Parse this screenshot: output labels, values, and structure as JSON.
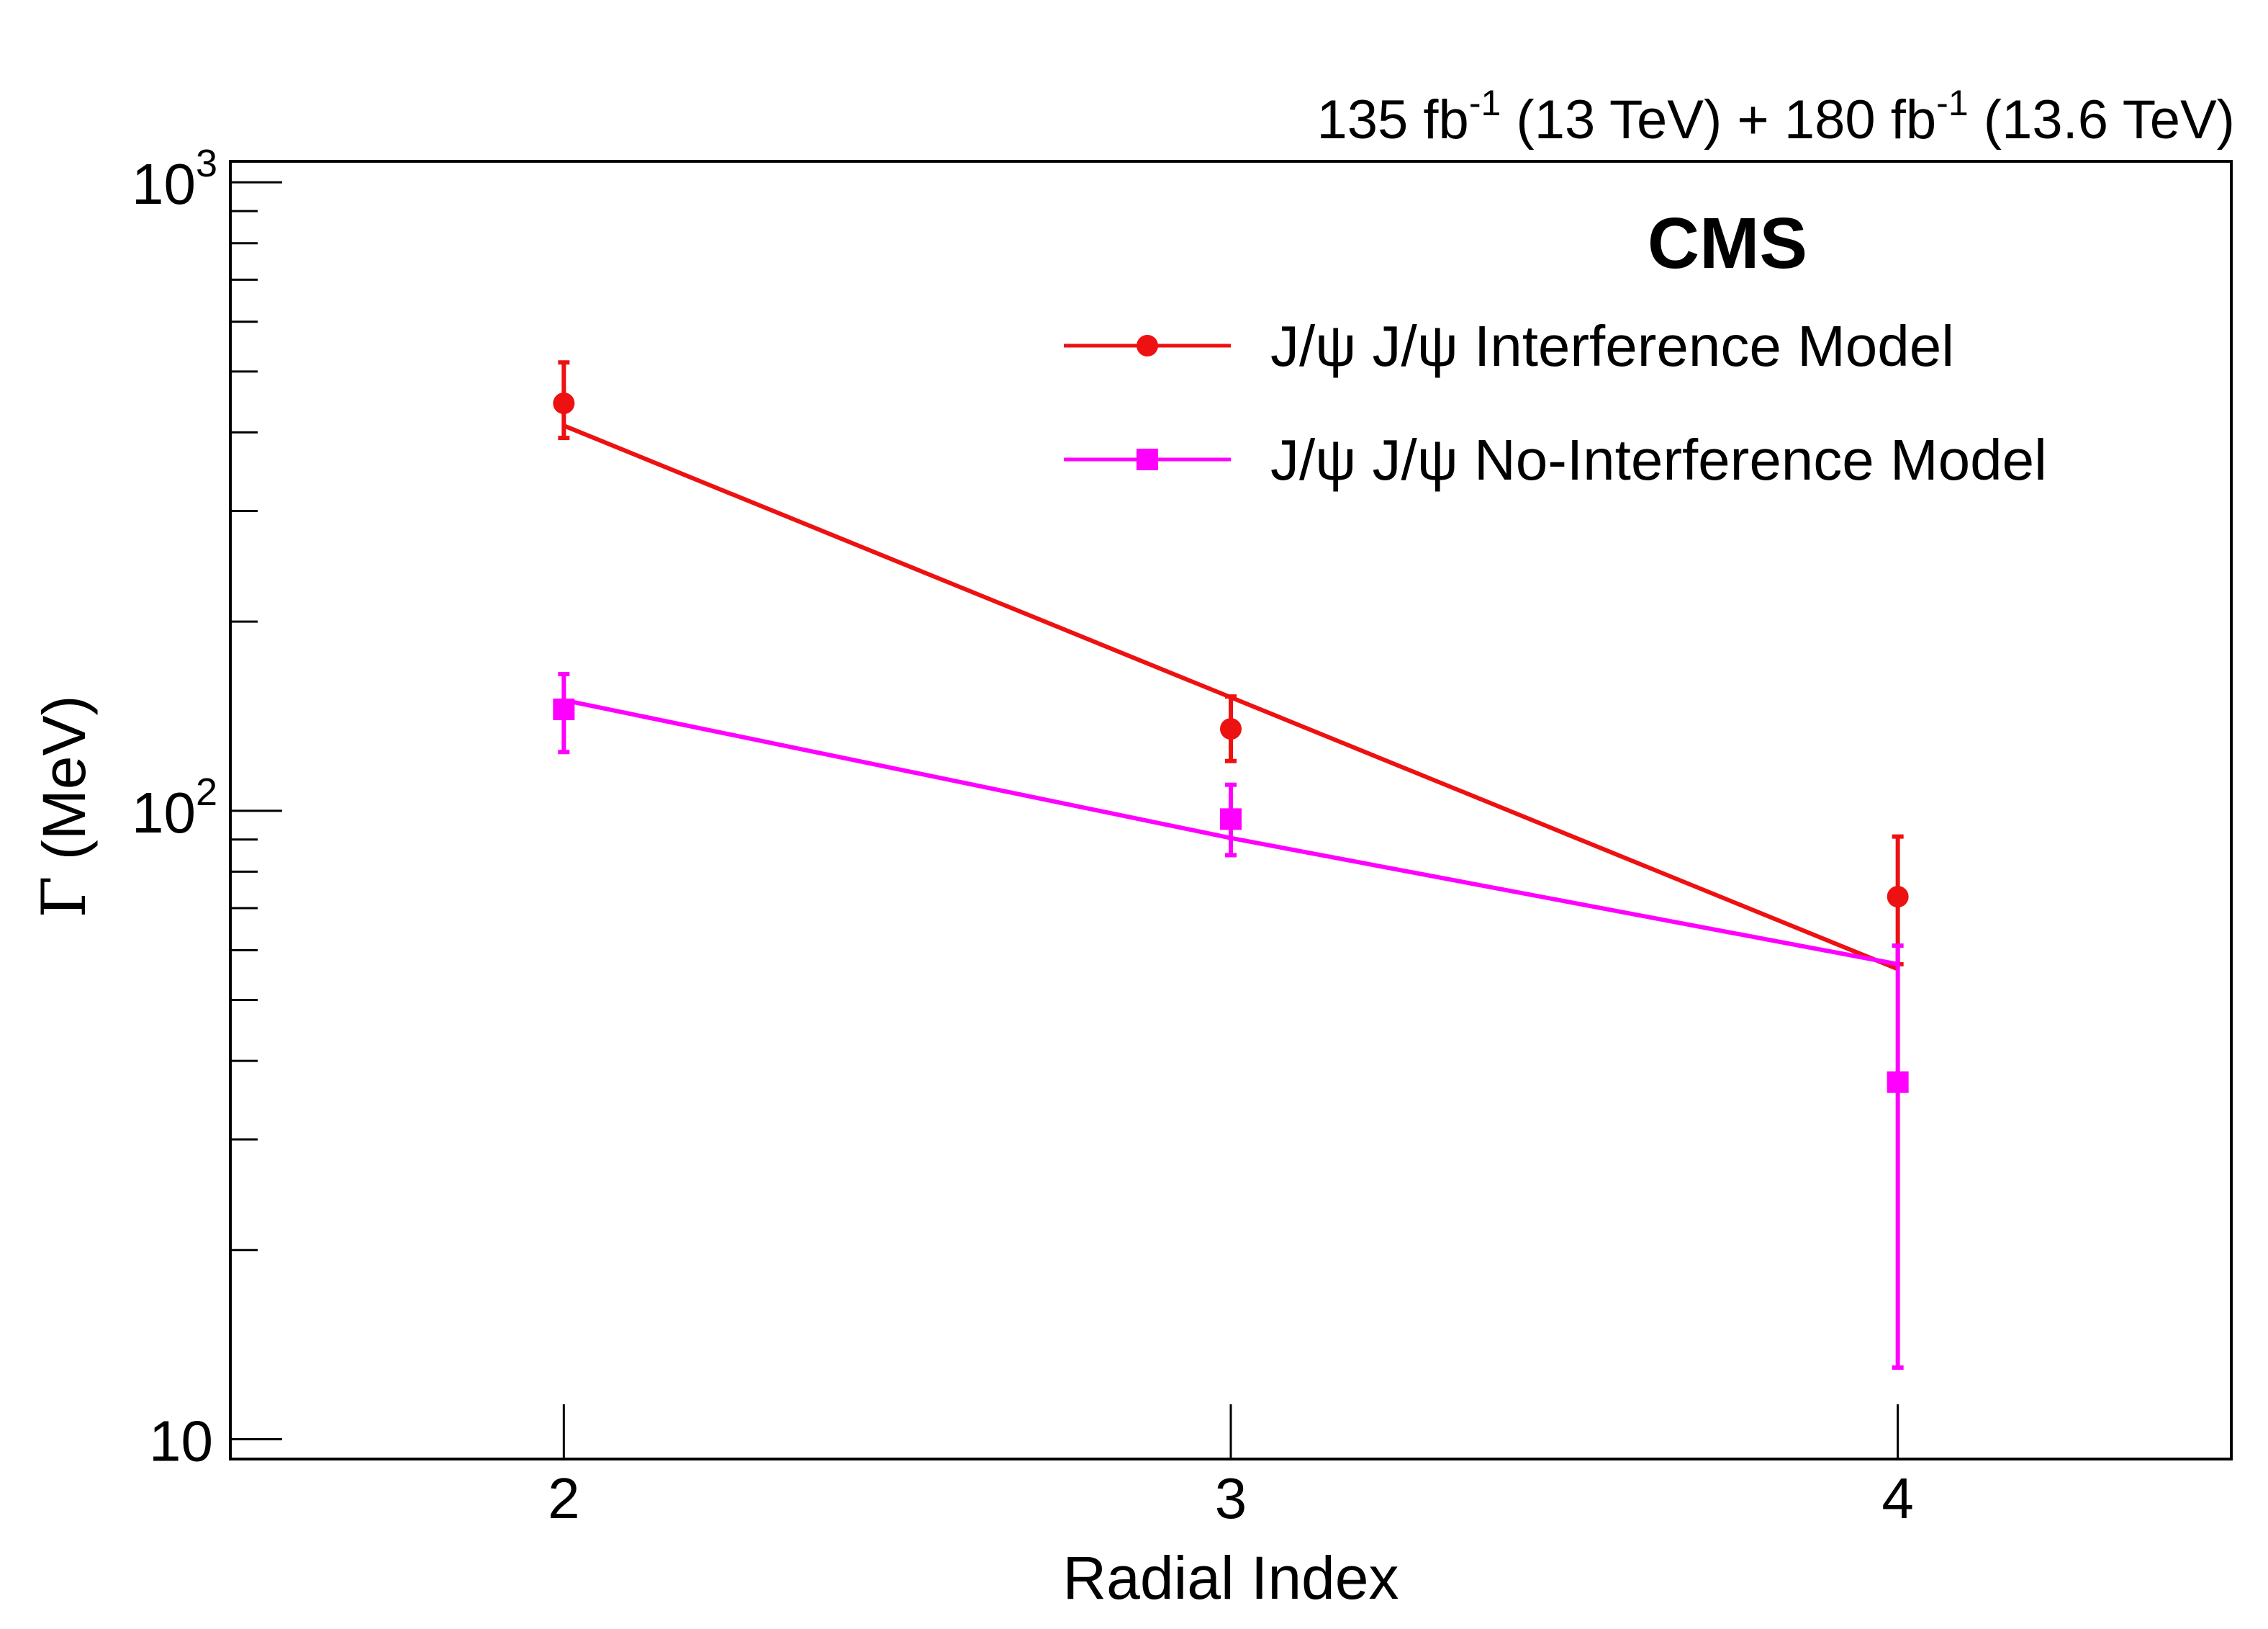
{
  "chart_data": {
    "type": "line",
    "experiment": "CMS",
    "lumi": {
      "parts": [
        {
          "text": "135 fb"
        },
        {
          "text": "-1",
          "sup": true
        },
        {
          "text": " (13 TeV) + 180 fb"
        },
        {
          "text": "-1",
          "sup": true
        },
        {
          "text": " (13.6 TeV)"
        }
      ]
    },
    "xlabel": "Radial Index",
    "ylabel_symbol": "Γ",
    "ylabel_unit": "(MeV)",
    "xlim": [
      1.5,
      4.5
    ],
    "ylim": [
      9.3,
      1080
    ],
    "yscale": "log",
    "x_ticks": [
      {
        "value": 2,
        "label": "2"
      },
      {
        "value": 3,
        "label": "3"
      },
      {
        "value": 4,
        "label": "4"
      }
    ],
    "y_ticks": [
      {
        "value": 10,
        "base": "10",
        "exp": ""
      },
      {
        "value": 100,
        "base": "10",
        "exp": "2"
      },
      {
        "value": 1000,
        "base": "10",
        "exp": "3"
      }
    ],
    "legend_position": "top-right",
    "series": [
      {
        "name": "J/ψ J/ψ Interference Model",
        "color": "#ee1111",
        "marker": "circle",
        "points": [
          {
            "x": 2,
            "y": 445,
            "ylow": 392,
            "yhigh": 517
          },
          {
            "x": 3,
            "y": 135,
            "ylow": 120,
            "yhigh": 152
          },
          {
            "x": 4,
            "y": 73,
            "ylow": 57,
            "yhigh": 91
          }
        ],
        "fit": [
          {
            "x": 2,
            "y": 410
          },
          {
            "x": 4,
            "y": 56
          }
        ]
      },
      {
        "name": "J/ψ J/ψ No-Interference Model",
        "color": "#ff00ff",
        "marker": "square",
        "points": [
          {
            "x": 2,
            "y": 145,
            "ylow": 124,
            "yhigh": 165
          },
          {
            "x": 3,
            "y": 97,
            "ylow": 85,
            "yhigh": 110
          },
          {
            "x": 4,
            "y": 37,
            "ylow": 13,
            "yhigh": 61
          }
        ],
        "fit": [
          {
            "x": 2,
            "y": 150
          },
          {
            "x": 3,
            "y": 90.5
          },
          {
            "x": 4,
            "y": 57
          }
        ]
      }
    ]
  }
}
